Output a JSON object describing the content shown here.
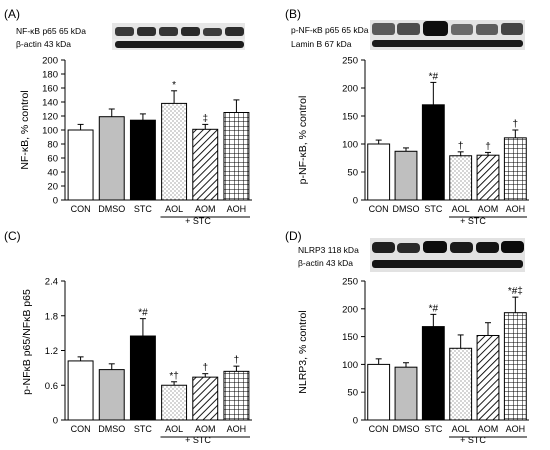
{
  "chart_data": [
    {
      "type": "bar",
      "panel_label": "(A)",
      "blot_labels": [
        "NF-κB p65 65 kDa",
        "β-actin 43 kDa"
      ],
      "categories": [
        "CON",
        "DMSO",
        "STC",
        "AOL",
        "AOM",
        "AOH"
      ],
      "group_label": "+ STC",
      "values": [
        100,
        119,
        114,
        138,
        101,
        125
      ],
      "errors": [
        8,
        11,
        9,
        18,
        7,
        18
      ],
      "markers": [
        "",
        "",
        "",
        "*",
        "‡",
        ""
      ],
      "ylabel": "NF-κB, % control",
      "ylim": [
        0,
        200
      ],
      "yticks": [
        "0",
        "20",
        "40",
        "60",
        "80",
        "100",
        "120",
        "140",
        "160",
        "180",
        "200"
      ],
      "patterns": [
        "white",
        "gray",
        "black",
        "dots",
        "diagonal",
        "grid"
      ]
    },
    {
      "type": "bar",
      "panel_label": "(B)",
      "blot_labels": [
        "p-NF-κB p65 65 kDa",
        "Lamin B 67 kDa"
      ],
      "categories": [
        "CON",
        "DMSO",
        "STC",
        "AOL",
        "AOM",
        "AOH"
      ],
      "group_label": "+ STC",
      "values": [
        100,
        87,
        170,
        79,
        80,
        111
      ],
      "errors": [
        7,
        6,
        40,
        7,
        5,
        14
      ],
      "markers": [
        "",
        "",
        "*#",
        "†",
        "†",
        "†"
      ],
      "ylabel": "p-NF-κB, % control",
      "ylim": [
        0,
        250
      ],
      "yticks": [
        "0",
        "50",
        "100",
        "150",
        "200",
        "250"
      ],
      "patterns": [
        "white",
        "gray",
        "black",
        "dots",
        "diagonal",
        "grid"
      ]
    },
    {
      "type": "bar",
      "panel_label": "(C)",
      "categories": [
        "CON",
        "DMSO",
        "STC",
        "AOL",
        "AOM",
        "AOH"
      ],
      "group_label": "+ STC",
      "values": [
        1.02,
        0.87,
        1.45,
        0.6,
        0.74,
        0.84
      ],
      "errors": [
        0.07,
        0.1,
        0.3,
        0.06,
        0.06,
        0.09
      ],
      "markers": [
        "",
        "",
        "*#",
        "*†",
        "†",
        "†"
      ],
      "ylabel": "p-NFκB p65/NFκB p65",
      "ylim": [
        0,
        2.4
      ],
      "yticks": [
        "0",
        "0.6",
        "1.2",
        "1.8",
        "2.4"
      ],
      "patterns": [
        "white",
        "gray",
        "black",
        "dots",
        "diagonal",
        "grid"
      ]
    },
    {
      "type": "bar",
      "panel_label": "(D)",
      "blot_labels": [
        "NLRP3 118 kDa",
        "β-actin 43 kDa"
      ],
      "categories": [
        "CON",
        "DMSO",
        "STC",
        "AOL",
        "AOM",
        "AOH"
      ],
      "group_label": "+ STC",
      "values": [
        100,
        95,
        168,
        129,
        152,
        193
      ],
      "errors": [
        10,
        8,
        22,
        24,
        23,
        28
      ],
      "markers": [
        "",
        "",
        "*#",
        "",
        "",
        "*#‡"
      ],
      "ylabel": "NLRP3, % control",
      "ylim": [
        0,
        250
      ],
      "yticks": [
        "0",
        "50",
        "100",
        "150",
        "200",
        "250"
      ],
      "patterns": [
        "white",
        "gray",
        "black",
        "dots",
        "diagonal",
        "grid"
      ]
    }
  ]
}
